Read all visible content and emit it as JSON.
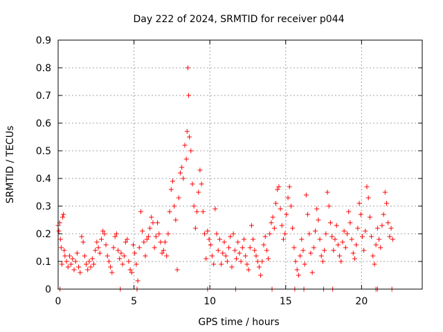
{
  "chart_data": {
    "type": "scatter",
    "title": "Day 222 of 2024, SRMTID for receiver p044",
    "xlabel": "GPS time / hours",
    "ylabel": "SRMTID / TECUs",
    "xlim": [
      0,
      24
    ],
    "ylim": [
      0,
      0.9
    ],
    "xticks": [
      0,
      5,
      10,
      15,
      20
    ],
    "yticks": [
      0,
      0.1,
      0.2,
      0.3,
      0.4,
      0.5,
      0.6,
      0.7,
      0.8,
      0.9
    ],
    "xtick_labels": [
      "0",
      "5",
      "10",
      "15",
      "20"
    ],
    "ytick_labels": [
      "0",
      "0.1",
      "0.2",
      "0.3",
      "0.4",
      "0.5",
      "0.6",
      "0.7",
      "0.8",
      "0.9"
    ],
    "grid": true,
    "marker": "+",
    "color": "#ff0000",
    "series": [
      {
        "name": "SRMTID",
        "points": [
          [
            0.0,
            0.23
          ],
          [
            0.05,
            0.21
          ],
          [
            0.1,
            0.24
          ],
          [
            0.15,
            0.18
          ],
          [
            0.2,
            0.15
          ],
          [
            0.25,
            0.09
          ],
          [
            0.3,
            0.26
          ],
          [
            0.35,
            0.27
          ],
          [
            0.4,
            0.14
          ],
          [
            0.45,
            0.12
          ],
          [
            0.55,
            0.1
          ],
          [
            0.65,
            0.08
          ],
          [
            0.75,
            0.12
          ],
          [
            0.85,
            0.09
          ],
          [
            0.95,
            0.11
          ],
          [
            1.05,
            0.07
          ],
          [
            1.15,
            0.1
          ],
          [
            1.25,
            0.13
          ],
          [
            1.35,
            0.08
          ],
          [
            1.45,
            0.06
          ],
          [
            1.55,
            0.19
          ],
          [
            1.65,
            0.17
          ],
          [
            1.75,
            0.12
          ],
          [
            1.85,
            0.09
          ],
          [
            1.95,
            0.07
          ],
          [
            2.05,
            0.1
          ],
          [
            2.15,
            0.08
          ],
          [
            2.25,
            0.11
          ],
          [
            2.35,
            0.09
          ],
          [
            2.45,
            0.14
          ],
          [
            2.55,
            0.17
          ],
          [
            2.65,
            0.15
          ],
          [
            2.75,
            0.13
          ],
          [
            2.85,
            0.18
          ],
          [
            2.95,
            0.21
          ],
          [
            3.05,
            0.2
          ],
          [
            3.15,
            0.16
          ],
          [
            3.25,
            0.12
          ],
          [
            3.35,
            0.1
          ],
          [
            3.45,
            0.08
          ],
          [
            3.55,
            0.06
          ],
          [
            3.65,
            0.15
          ],
          [
            3.75,
            0.19
          ],
          [
            3.85,
            0.2
          ],
          [
            3.95,
            0.14
          ],
          [
            4.05,
            0.11
          ],
          [
            4.15,
            0.13
          ],
          [
            4.25,
            0.09
          ],
          [
            4.35,
            0.12
          ],
          [
            4.45,
            0.17
          ],
          [
            4.55,
            0.18
          ],
          [
            4.65,
            0.1
          ],
          [
            4.75,
            0.07
          ],
          [
            4.85,
            0.06
          ],
          [
            4.95,
            0.16
          ],
          [
            5.05,
            0.13
          ],
          [
            5.15,
            0.09
          ],
          [
            5.25,
            0.03
          ],
          [
            5.35,
            0.15
          ],
          [
            5.45,
            0.28
          ],
          [
            5.55,
            0.21
          ],
          [
            5.65,
            0.17
          ],
          [
            5.75,
            0.12
          ],
          [
            5.85,
            0.18
          ],
          [
            5.95,
            0.19
          ],
          [
            6.05,
            0.22
          ],
          [
            6.15,
            0.26
          ],
          [
            6.25,
            0.24
          ],
          [
            6.35,
            0.15
          ],
          [
            6.45,
            0.19
          ],
          [
            6.55,
            0.24
          ],
          [
            6.65,
            0.2
          ],
          [
            6.75,
            0.17
          ],
          [
            6.85,
            0.13
          ],
          [
            6.95,
            0.14
          ],
          [
            7.05,
            0.17
          ],
          [
            7.15,
            0.12
          ],
          [
            7.25,
            0.2
          ],
          [
            7.35,
            0.28
          ],
          [
            7.45,
            0.36
          ],
          [
            7.55,
            0.39
          ],
          [
            7.65,
            0.3
          ],
          [
            7.75,
            0.25
          ],
          [
            7.85,
            0.07
          ],
          [
            7.95,
            0.33
          ],
          [
            8.05,
            0.42
          ],
          [
            8.15,
            0.44
          ],
          [
            8.25,
            0.4
          ],
          [
            8.35,
            0.52
          ],
          [
            8.45,
            0.47
          ],
          [
            8.5,
            0.57
          ],
          [
            8.55,
            0.8
          ],
          [
            8.6,
            0.7
          ],
          [
            8.65,
            0.55
          ],
          [
            8.75,
            0.5
          ],
          [
            8.85,
            0.38
          ],
          [
            8.95,
            0.3
          ],
          [
            9.05,
            0.22
          ],
          [
            9.15,
            0.28
          ],
          [
            9.25,
            0.35
          ],
          [
            9.35,
            0.43
          ],
          [
            9.45,
            0.38
          ],
          [
            9.55,
            0.28
          ],
          [
            9.65,
            0.2
          ],
          [
            9.75,
            0.11
          ],
          [
            9.85,
            0.21
          ],
          [
            9.95,
            0.18
          ],
          [
            10.05,
            0.16
          ],
          [
            10.15,
            0.12
          ],
          [
            10.25,
            0.09
          ],
          [
            10.35,
            0.29
          ],
          [
            10.45,
            0.2
          ],
          [
            10.55,
            0.14
          ],
          [
            10.65,
            0.18
          ],
          [
            10.75,
            0.09
          ],
          [
            10.85,
            0.13
          ],
          [
            10.95,
            0.17
          ],
          [
            11.05,
            0.12
          ],
          [
            11.15,
            0.1
          ],
          [
            11.25,
            0.15
          ],
          [
            11.35,
            0.19
          ],
          [
            11.45,
            0.08
          ],
          [
            11.55,
            0.2
          ],
          [
            11.65,
            0.14
          ],
          [
            11.75,
            0.11
          ],
          [
            11.85,
            0.17
          ],
          [
            11.95,
            0.13
          ],
          [
            12.05,
            0.1
          ],
          [
            12.15,
            0.15
          ],
          [
            12.25,
            0.18
          ],
          [
            12.35,
            0.12
          ],
          [
            12.45,
            0.09
          ],
          [
            12.55,
            0.07
          ],
          [
            12.65,
            0.15
          ],
          [
            12.75,
            0.23
          ],
          [
            12.85,
            0.18
          ],
          [
            12.95,
            0.14
          ],
          [
            13.05,
            0.12
          ],
          [
            13.15,
            0.1
          ],
          [
            13.25,
            0.08
          ],
          [
            13.35,
            0.05
          ],
          [
            13.45,
            0.1
          ],
          [
            13.55,
            0.16
          ],
          [
            13.65,
            0.19
          ],
          [
            13.75,
            0.14
          ],
          [
            13.85,
            0.11
          ],
          [
            13.95,
            0.2
          ],
          [
            14.05,
            0.24
          ],
          [
            14.15,
            0.26
          ],
          [
            14.25,
            0.22
          ],
          [
            14.35,
            0.31
          ],
          [
            14.45,
            0.36
          ],
          [
            14.55,
            0.37
          ],
          [
            14.65,
            0.29
          ],
          [
            14.75,
            0.23
          ],
          [
            14.85,
            0.18
          ],
          [
            14.95,
            0.2
          ],
          [
            15.05,
            0.27
          ],
          [
            15.15,
            0.33
          ],
          [
            15.25,
            0.37
          ],
          [
            15.35,
            0.3
          ],
          [
            15.45,
            0.22
          ],
          [
            15.55,
            0.15
          ],
          [
            15.65,
            0.1
          ],
          [
            15.75,
            0.07
          ],
          [
            15.85,
            0.05
          ],
          [
            15.95,
            0.12
          ],
          [
            16.05,
            0.18
          ],
          [
            16.15,
            0.14
          ],
          [
            16.25,
            0.09
          ],
          [
            16.35,
            0.34
          ],
          [
            16.45,
            0.27
          ],
          [
            16.55,
            0.2
          ],
          [
            16.65,
            0.13
          ],
          [
            16.75,
            0.06
          ],
          [
            16.85,
            0.15
          ],
          [
            16.95,
            0.21
          ],
          [
            17.05,
            0.29
          ],
          [
            17.15,
            0.25
          ],
          [
            17.25,
            0.18
          ],
          [
            17.35,
            0.12
          ],
          [
            17.45,
            0.1
          ],
          [
            17.55,
            0.14
          ],
          [
            17.65,
            0.2
          ],
          [
            17.75,
            0.35
          ],
          [
            17.85,
            0.3
          ],
          [
            17.95,
            0.24
          ],
          [
            18.05,
            0.19
          ],
          [
            18.15,
            0.14
          ],
          [
            18.25,
            0.18
          ],
          [
            18.35,
            0.23
          ],
          [
            18.45,
            0.16
          ],
          [
            18.55,
            0.12
          ],
          [
            18.65,
            0.1
          ],
          [
            18.75,
            0.17
          ],
          [
            18.85,
            0.21
          ],
          [
            18.95,
            0.15
          ],
          [
            19.05,
            0.2
          ],
          [
            19.15,
            0.28
          ],
          [
            19.25,
            0.24
          ],
          [
            19.35,
            0.18
          ],
          [
            19.45,
            0.13
          ],
          [
            19.55,
            0.11
          ],
          [
            19.65,
            0.16
          ],
          [
            19.75,
            0.22
          ],
          [
            19.85,
            0.31
          ],
          [
            19.95,
            0.27
          ],
          [
            20.05,
            0.19
          ],
          [
            20.15,
            0.14
          ],
          [
            20.25,
            0.21
          ],
          [
            20.35,
            0.37
          ],
          [
            20.45,
            0.33
          ],
          [
            20.55,
            0.26
          ],
          [
            20.65,
            0.19
          ],
          [
            20.75,
            0.12
          ],
          [
            20.85,
            0.09
          ],
          [
            20.95,
            0.16
          ],
          [
            21.05,
            0.22
          ],
          [
            21.15,
            0.18
          ],
          [
            21.25,
            0.15
          ],
          [
            21.35,
            0.23
          ],
          [
            21.45,
            0.27
          ],
          [
            21.55,
            0.35
          ],
          [
            21.65,
            0.31
          ],
          [
            21.75,
            0.24
          ],
          [
            21.85,
            0.19
          ],
          [
            21.95,
            0.22
          ],
          [
            22.05,
            0.18
          ],
          [
            0.12,
            0.0
          ],
          [
            4.1,
            0.0
          ],
          [
            5.2,
            0.0
          ],
          [
            9.85,
            0.0
          ],
          [
            11.7,
            0.0
          ],
          [
            14.1,
            0.0
          ],
          [
            15.6,
            0.0
          ],
          [
            16.2,
            0.0
          ],
          [
            17.5,
            0.0
          ],
          [
            18.1,
            0.0
          ],
          [
            20.95,
            0.0
          ],
          [
            21.05,
            0.0
          ],
          [
            22.0,
            0.0
          ]
        ]
      }
    ]
  }
}
